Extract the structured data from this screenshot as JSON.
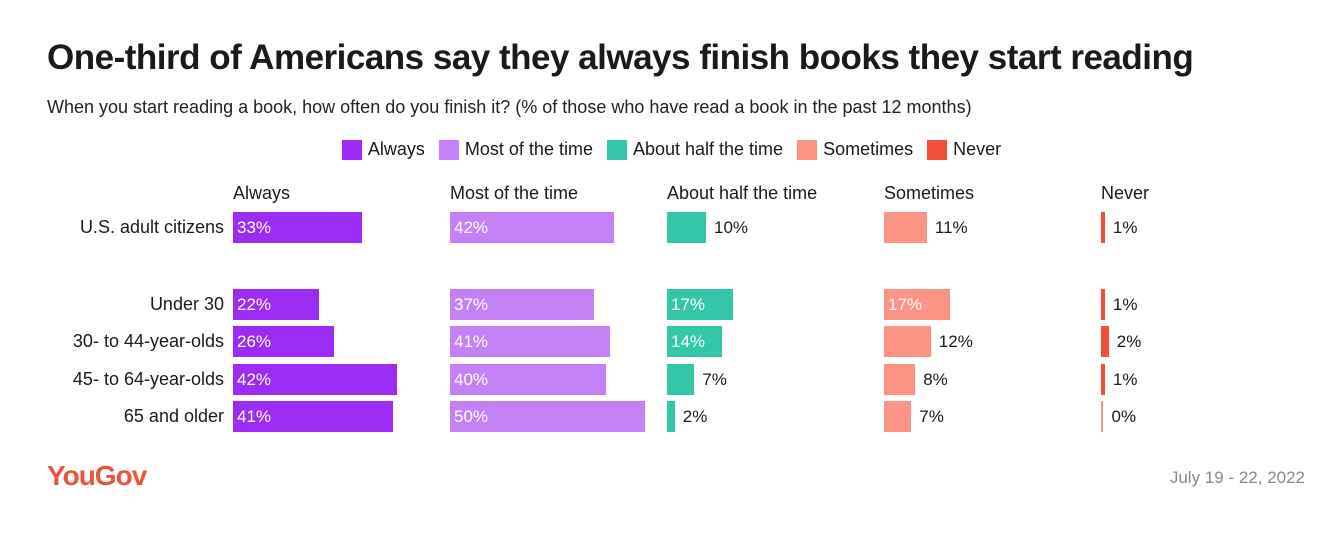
{
  "title": "One-third of Americans say they always finish books they start reading",
  "subtitle": "When you start reading a book, how often do you finish it? (% of those who have read a book in the past 12 months)",
  "legend": [
    {
      "label": "Always",
      "color": "#9b2bf5"
    },
    {
      "label": "Most of the time",
      "color": "#c481f7"
    },
    {
      "label": "About half the time",
      "color": "#33c6a9"
    },
    {
      "label": "Sometimes",
      "color": "#fb9484"
    },
    {
      "label": "Never",
      "color": "#f54d3c"
    }
  ],
  "footer": {
    "logo": "YouGov",
    "date": "July 19 - 22, 2022"
  },
  "chart_data": {
    "type": "bar",
    "orientation": "horizontal",
    "title": "One-third of Americans say they always finish books they start reading",
    "categories": [
      "U.S. adult citizens",
      "Under 30",
      "30- to 44-year-olds",
      "45- to 64-year-olds",
      "65 and older"
    ],
    "series": [
      {
        "name": "Always",
        "color": "#9b2bf5",
        "values": [
          33,
          22,
          26,
          42,
          41
        ],
        "labels": [
          "33%",
          "22%",
          "26%",
          "42%",
          "41%"
        ]
      },
      {
        "name": "Most of the time",
        "color": "#c481f7",
        "values": [
          42,
          37,
          41,
          40,
          50
        ],
        "labels": [
          "42%",
          "37%",
          "41%",
          "40%",
          "50%"
        ]
      },
      {
        "name": "About half the time",
        "color": "#33c6a9",
        "values": [
          10,
          17,
          14,
          7,
          2
        ],
        "labels": [
          "10%",
          "17%",
          "14%",
          "7%",
          "2%"
        ]
      },
      {
        "name": "Sometimes",
        "color": "#fb9484",
        "values": [
          11,
          17,
          12,
          8,
          7
        ],
        "labels": [
          "11%",
          "17%",
          "12%",
          "8%",
          "7%"
        ]
      },
      {
        "name": "Never",
        "color": "#f54d3c",
        "values": [
          1,
          1,
          2,
          1,
          0
        ],
        "labels": [
          "1%",
          "1%",
          "2%",
          "1%",
          "0%"
        ]
      }
    ],
    "unit": "%",
    "legend_position": "top-center",
    "grid": false
  }
}
